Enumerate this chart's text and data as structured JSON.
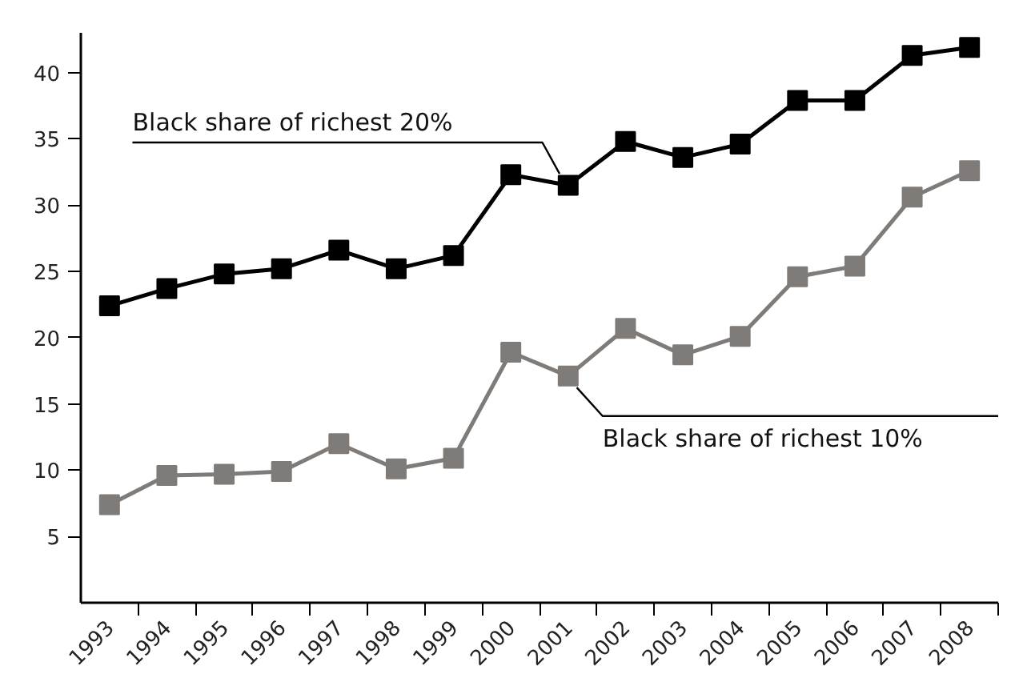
{
  "chart_data": {
    "type": "line",
    "categories": [
      "1993",
      "1994",
      "1995",
      "1996",
      "1997",
      "1998",
      "1999",
      "2000",
      "2001",
      "2002",
      "2003",
      "2004",
      "2005",
      "2006",
      "2007",
      "2008"
    ],
    "series": [
      {
        "name": "Black share of richest 20%",
        "color": "#000000",
        "values": [
          22.4,
          23.7,
          24.8,
          25.2,
          26.6,
          25.2,
          26.2,
          32.3,
          31.5,
          34.8,
          33.6,
          34.6,
          37.9,
          37.9,
          41.3,
          41.9
        ]
      },
      {
        "name": "Black share of richest 10%",
        "color": "#7f7b78",
        "values": [
          7.4,
          9.6,
          9.7,
          9.9,
          12.0,
          10.1,
          10.9,
          18.9,
          17.1,
          20.7,
          18.7,
          20.1,
          24.6,
          25.4,
          30.6,
          32.6
        ]
      }
    ],
    "ylim": [
      0,
      43
    ],
    "yticks": [
      5,
      10,
      15,
      20,
      25,
      30,
      35,
      40
    ],
    "grid": false,
    "marker": "square",
    "line_style": "solid"
  }
}
